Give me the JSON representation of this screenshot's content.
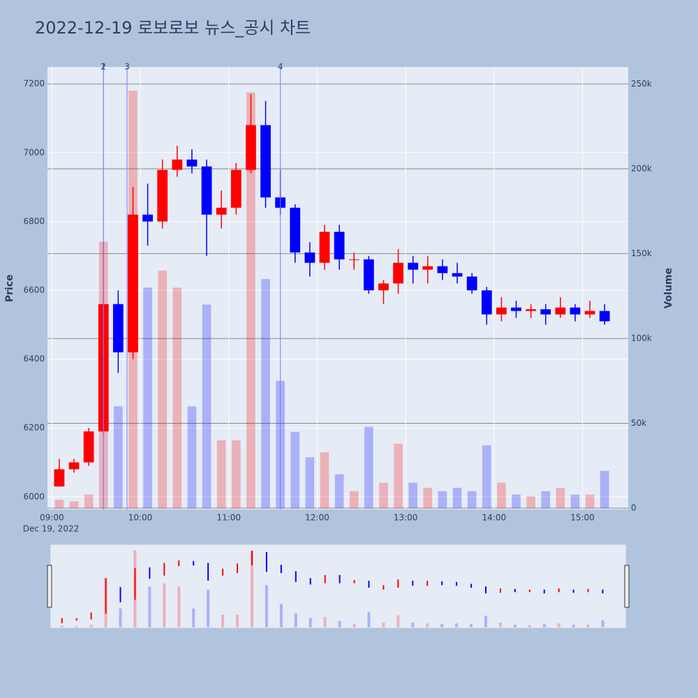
{
  "chart_data": {
    "type": "candlestick",
    "title": "2022-12-19 로보로보 뉴스_공시 차트",
    "y_title": "Price",
    "y2_title": "Volume",
    "x_date_label": "Dec 19, 2022",
    "increasing_color": "#ff0000",
    "decreasing_color": "#0000ff",
    "x": [
      "09:00",
      "09:10",
      "09:20",
      "09:30",
      "09:40",
      "09:50",
      "10:00",
      "10:10",
      "10:20",
      "10:30",
      "10:40",
      "10:50",
      "11:00",
      "11:10",
      "11:20",
      "11:30",
      "11:40",
      "11:50",
      "12:00",
      "12:10",
      "12:20",
      "12:30",
      "12:40",
      "12:50",
      "13:00",
      "13:10",
      "13:20",
      "13:30",
      "13:40",
      "13:50",
      "14:00",
      "14:10",
      "14:20",
      "14:30",
      "14:40",
      "14:50",
      "15:00",
      "15:10"
    ],
    "open": [
      6030,
      6080,
      6100,
      6190,
      6560,
      6420,
      6820,
      6800,
      6950,
      6980,
      6960,
      6820,
      6840,
      6950,
      7080,
      6870,
      6840,
      6710,
      6680,
      6770,
      6690,
      6690,
      6600,
      6620,
      6680,
      6660,
      6670,
      6650,
      6640,
      6600,
      6530,
      6550,
      6540,
      6545,
      6530,
      6550,
      6530,
      6540
    ],
    "high": [
      6110,
      6110,
      6200,
      6740,
      6600,
      6900,
      6910,
      6980,
      7020,
      7010,
      6980,
      6890,
      6970,
      7170,
      7150,
      6950,
      6850,
      6740,
      6790,
      6790,
      6710,
      6700,
      6630,
      6720,
      6700,
      6700,
      6690,
      6680,
      6650,
      6610,
      6580,
      6570,
      6560,
      6560,
      6580,
      6560,
      6570,
      6560
    ],
    "low": [
      6030,
      6070,
      6090,
      6180,
      6360,
      6400,
      6730,
      6780,
      6930,
      6940,
      6700,
      6780,
      6820,
      6940,
      6840,
      6820,
      6680,
      6640,
      6660,
      6660,
      6660,
      6590,
      6560,
      6590,
      6620,
      6620,
      6630,
      6620,
      6590,
      6500,
      6510,
      6520,
      6520,
      6500,
      6520,
      6510,
      6520,
      6500
    ],
    "close": [
      6080,
      6100,
      6190,
      6560,
      6420,
      6820,
      6800,
      6950,
      6980,
      6960,
      6820,
      6840,
      6950,
      7080,
      6870,
      6840,
      6710,
      6680,
      6770,
      6690,
      6690,
      6600,
      6620,
      6680,
      6660,
      6670,
      6650,
      6640,
      6600,
      6530,
      6550,
      6540,
      6545,
      6530,
      6550,
      6530,
      6540,
      6510
    ],
    "volume": [
      5000,
      4000,
      8000,
      157000,
      60000,
      246000,
      130000,
      140000,
      130000,
      60000,
      120000,
      40000,
      40000,
      245000,
      135000,
      75000,
      45000,
      30000,
      33000,
      20000,
      10000,
      48000,
      15000,
      38000,
      15000,
      12000,
      10000,
      12000,
      10000,
      37000,
      15000,
      8000,
      7000,
      10000,
      12000,
      8000,
      8000,
      22000
    ],
    "xlim": [
      "08:57",
      "15:31"
    ],
    "xticks": [
      "09:00",
      "10:00",
      "11:00",
      "12:00",
      "13:00",
      "14:00",
      "15:00"
    ],
    "ylim": [
      5963,
      7249
    ],
    "yticks": [
      6000,
      6200,
      6400,
      6600,
      6800,
      7000,
      7200
    ],
    "y2lim": [
      -800,
      260000
    ],
    "y2ticks": [
      0,
      {
        "value": 50000,
        "label": "50k"
      },
      {
        "value": 100000,
        "label": "100k"
      },
      {
        "value": 150000,
        "label": "150k"
      },
      {
        "value": 200000,
        "label": "200k"
      },
      {
        "value": 250000,
        "label": "250k"
      }
    ],
    "annotations": [
      {
        "x": "09:35",
        "text": "1"
      },
      {
        "x": "09:35",
        "text": "2"
      },
      {
        "x": "09:51",
        "text": "3"
      },
      {
        "x": "11:35",
        "text": "4"
      }
    ]
  }
}
